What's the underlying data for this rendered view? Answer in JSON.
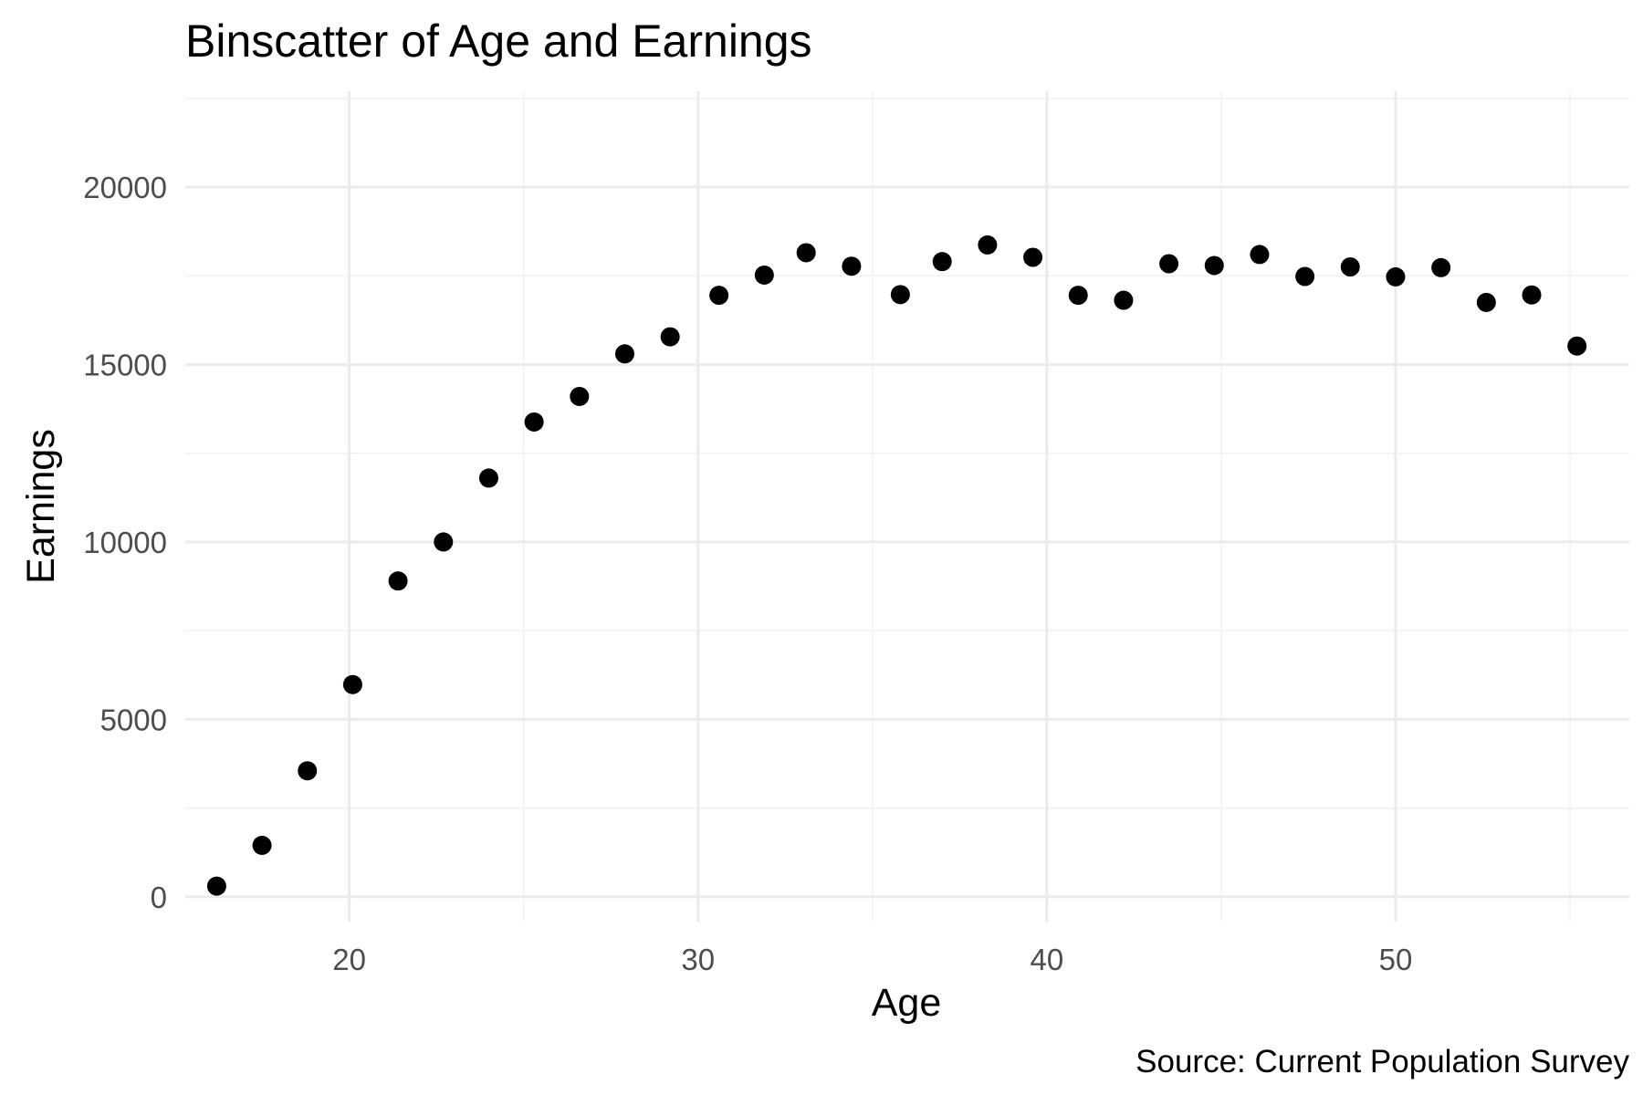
{
  "chart_data": {
    "type": "scatter",
    "title": "Binscatter of Age and Earnings",
    "xlabel": "Age",
    "ylabel": "Earnings",
    "caption": "Source: Current Population Survey",
    "xlim": [
      15.3,
      56.7
    ],
    "ylim": [
      -700,
      22700
    ],
    "x_ticks": [
      20,
      30,
      40,
      50
    ],
    "x_tick_labels": [
      "20",
      "30",
      "40",
      "50"
    ],
    "y_ticks": [
      0,
      5000,
      10000,
      15000,
      20000
    ],
    "y_tick_labels": [
      "0",
      "5000",
      "10000",
      "15000",
      "20000"
    ],
    "grid": true,
    "point_color": "#000000",
    "points": [
      {
        "x": 16.2,
        "y": 300
      },
      {
        "x": 17.5,
        "y": 1450
      },
      {
        "x": 18.8,
        "y": 3550
      },
      {
        "x": 20.1,
        "y": 5980
      },
      {
        "x": 21.4,
        "y": 8900
      },
      {
        "x": 22.7,
        "y": 10000
      },
      {
        "x": 24.0,
        "y": 11800
      },
      {
        "x": 25.3,
        "y": 13380
      },
      {
        "x": 26.6,
        "y": 14100
      },
      {
        "x": 27.9,
        "y": 15300
      },
      {
        "x": 29.2,
        "y": 15780
      },
      {
        "x": 30.6,
        "y": 16950
      },
      {
        "x": 31.9,
        "y": 17520
      },
      {
        "x": 33.1,
        "y": 18150
      },
      {
        "x": 34.4,
        "y": 17770
      },
      {
        "x": 35.8,
        "y": 16970
      },
      {
        "x": 37.0,
        "y": 17900
      },
      {
        "x": 38.3,
        "y": 18370
      },
      {
        "x": 39.6,
        "y": 18020
      },
      {
        "x": 40.9,
        "y": 16950
      },
      {
        "x": 42.2,
        "y": 16810
      },
      {
        "x": 43.5,
        "y": 17840
      },
      {
        "x": 44.8,
        "y": 17790
      },
      {
        "x": 46.1,
        "y": 18100
      },
      {
        "x": 47.4,
        "y": 17480
      },
      {
        "x": 48.7,
        "y": 17750
      },
      {
        "x": 50.0,
        "y": 17470
      },
      {
        "x": 51.3,
        "y": 17730
      },
      {
        "x": 52.6,
        "y": 16750
      },
      {
        "x": 53.9,
        "y": 16960
      },
      {
        "x": 55.2,
        "y": 15520
      }
    ]
  }
}
